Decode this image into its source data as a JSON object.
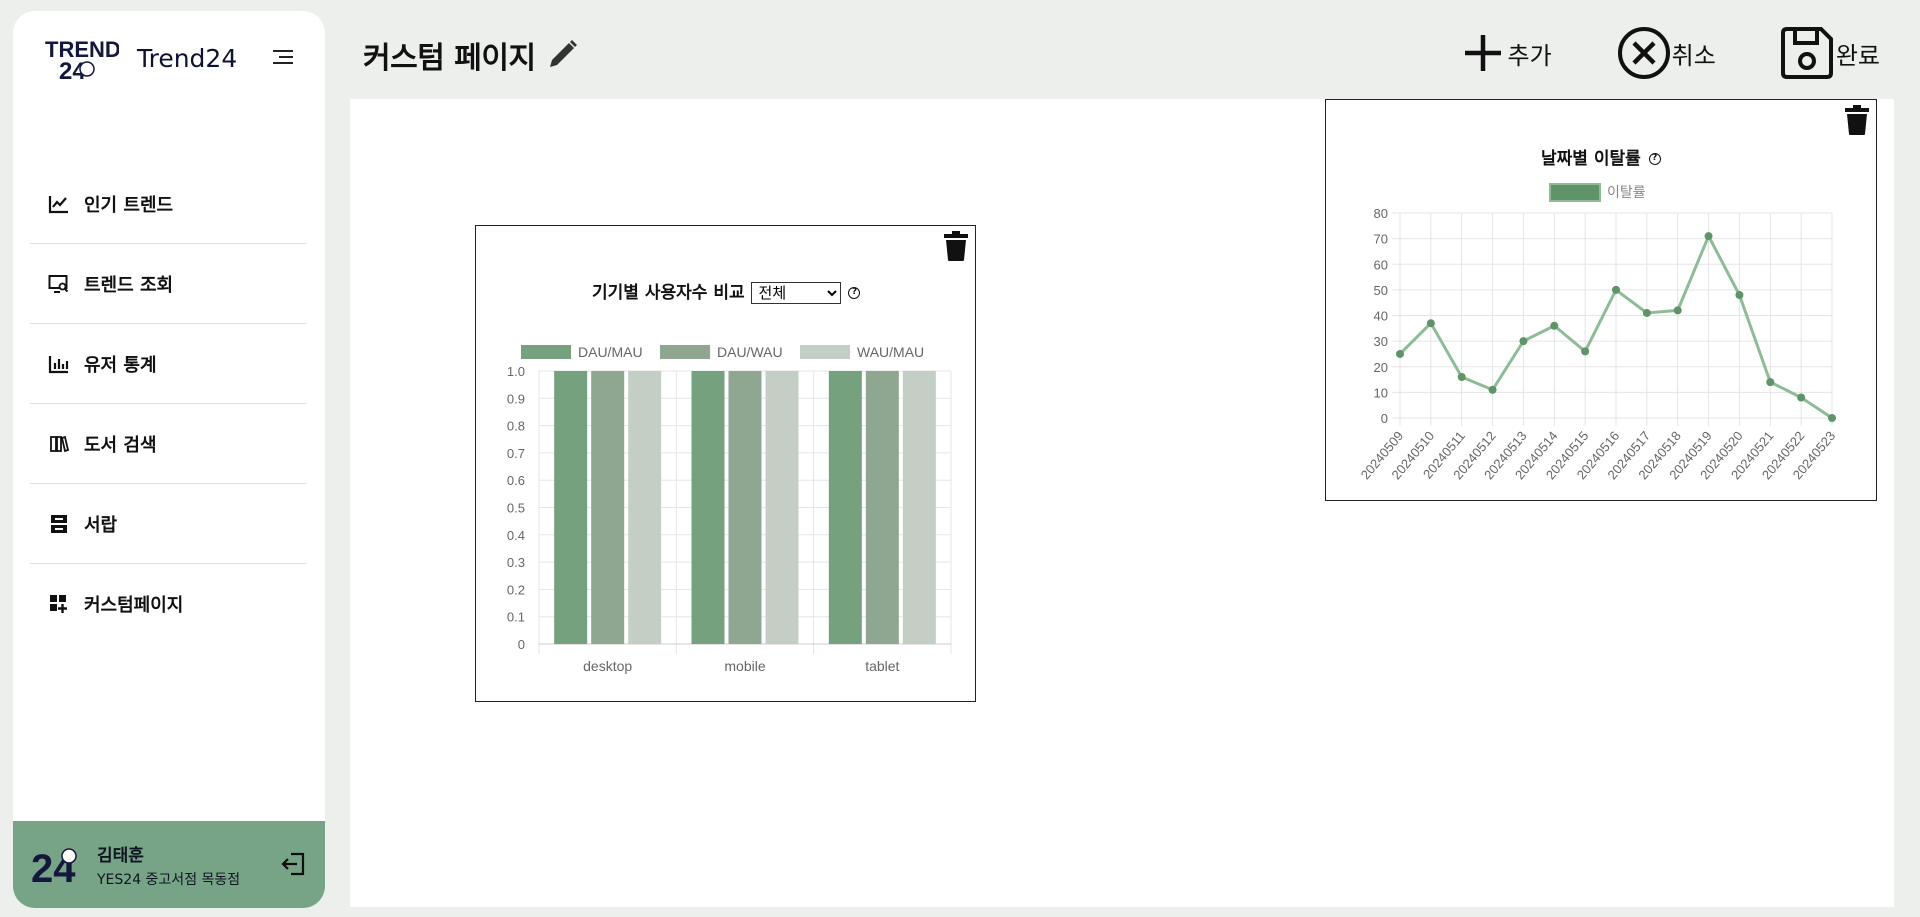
{
  "brand": {
    "name": "Trend24",
    "logo_text": "TREND 24"
  },
  "nav": {
    "items": [
      {
        "label": "인기 트렌드",
        "icon": "trend-chart-icon"
      },
      {
        "label": "트렌드 조회",
        "icon": "monitor-search-icon"
      },
      {
        "label": "유저 통계",
        "icon": "bar-stats-icon"
      },
      {
        "label": "도서 검색",
        "icon": "books-icon"
      },
      {
        "label": "서랍",
        "icon": "drawer-icon"
      },
      {
        "label": "커스텀페이지",
        "icon": "dashboard-add-icon"
      }
    ]
  },
  "user": {
    "name": "김태훈",
    "shop": "YES24 중고서점 목동점"
  },
  "header": {
    "title": "커스텀 페이지"
  },
  "actions": {
    "add": "추가",
    "cancel": "취소",
    "done": "완료"
  },
  "colors": {
    "sidebar_user_bg": "#77a386",
    "accent": "#6b9c7a"
  },
  "widgets": {
    "device": {
      "title": "기기별 사용자수 비교",
      "filter_selected": "전체",
      "filter_options": [
        "전체"
      ]
    },
    "churn": {
      "title": "날짜별 이탈률"
    }
  },
  "chart_data": [
    {
      "type": "bar",
      "title": "기기별 사용자수 비교",
      "categories": [
        "desktop",
        "mobile",
        "tablet"
      ],
      "series": [
        {
          "name": "DAU/MAU",
          "values": [
            1.0,
            1.0,
            1.0
          ],
          "color": "#76a17f"
        },
        {
          "name": "DAU/WAU",
          "values": [
            1.0,
            1.0,
            1.0
          ],
          "color": "#8fa790"
        },
        {
          "name": "WAU/MAU",
          "values": [
            1.0,
            1.0,
            1.0
          ],
          "color": "#c3cfc4"
        }
      ],
      "ylim": [
        0,
        1.0
      ],
      "yticks": [
        "0",
        "0.1",
        "0.2",
        "0.3",
        "0.4",
        "0.5",
        "0.6",
        "0.7",
        "0.8",
        "0.9",
        "1.0"
      ],
      "legend": "top",
      "grid": true
    },
    {
      "type": "line",
      "title": "날짜별 이탈률",
      "x": [
        "20240509",
        "20240510",
        "20240511",
        "20240512",
        "20240513",
        "20240514",
        "20240515",
        "20240516",
        "20240517",
        "20240518",
        "20240519",
        "20240520",
        "20240521",
        "20240522",
        "20240523"
      ],
      "series": [
        {
          "name": "이탈률",
          "values": [
            25,
            37,
            16,
            11,
            30,
            36,
            26,
            50,
            41,
            42,
            71,
            48,
            14,
            8,
            0
          ],
          "color": "#8fbc98",
          "point_color": "#5e9468"
        }
      ],
      "ylim": [
        0,
        80
      ],
      "yticks": [
        "0",
        "10",
        "20",
        "30",
        "40",
        "50",
        "60",
        "70",
        "80"
      ],
      "legend": "top",
      "grid": true
    }
  ]
}
